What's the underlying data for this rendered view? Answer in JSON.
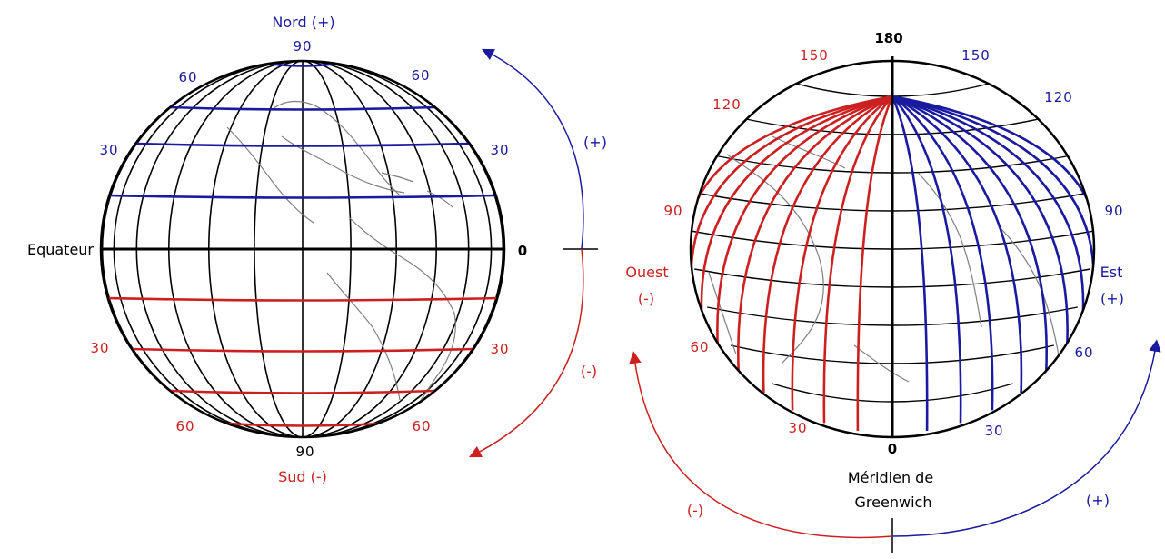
{
  "colors": {
    "north_east": "#1a1aa0",
    "south_west": "#cc2020",
    "grid": "#000000",
    "coast": "#777777"
  },
  "latitude_globe": {
    "north_label": "Nord (+)",
    "south_label": "Sud (-)",
    "equator_label": "Equateur",
    "zero_label": "0",
    "north_pole_value": "90",
    "south_pole_value": "90",
    "north_lat_labels": [
      "60",
      "60",
      "30",
      "30"
    ],
    "south_lat_labels": [
      "30",
      "30",
      "60",
      "60"
    ],
    "arrow_plus": "(+)",
    "arrow_minus": "(-)"
  },
  "longitude_globe": {
    "top_value": "180",
    "bottom_value": "0",
    "meridian_label_line1": "Méridien de",
    "meridian_label_line2": "Greenwich",
    "west_label": "Ouest",
    "west_sign": "(-)",
    "east_label": "Est",
    "east_sign": "(+)",
    "west_values": [
      "150",
      "120",
      "90",
      "60",
      "30"
    ],
    "east_values": [
      "150",
      "120",
      "90",
      "60",
      "30"
    ],
    "arrow_minus": "(-)",
    "arrow_plus": "(+)"
  }
}
